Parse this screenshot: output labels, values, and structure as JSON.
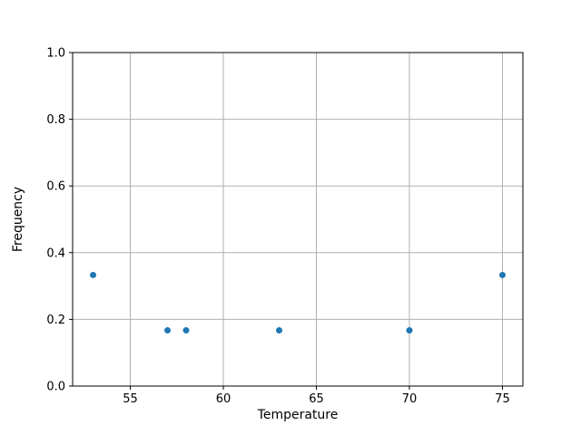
{
  "chart_data": {
    "type": "scatter",
    "title": "",
    "xlabel": "Temperature",
    "ylabel": "Frequency",
    "x": [
      53,
      57,
      58,
      63,
      70,
      75
    ],
    "y": [
      0.333,
      0.167,
      0.167,
      0.167,
      0.167,
      0.333
    ],
    "xlim": [
      51.9,
      76.1
    ],
    "ylim": [
      0.0,
      1.0
    ],
    "xticks": [
      55,
      60,
      65,
      70,
      75
    ],
    "xtick_labels": [
      "55",
      "60",
      "65",
      "70",
      "75"
    ],
    "yticks": [
      0.0,
      0.2,
      0.4,
      0.6,
      0.8,
      1.0
    ],
    "ytick_labels": [
      "0.0",
      "0.2",
      "0.4",
      "0.6",
      "0.8",
      "1.0"
    ],
    "grid": true,
    "legend": null,
    "marker_color": "#1f77b4",
    "marker_radius_px": 3.5,
    "grid_color": "#b0b0b0",
    "axis_color": "#000000",
    "background": "#ffffff"
  }
}
